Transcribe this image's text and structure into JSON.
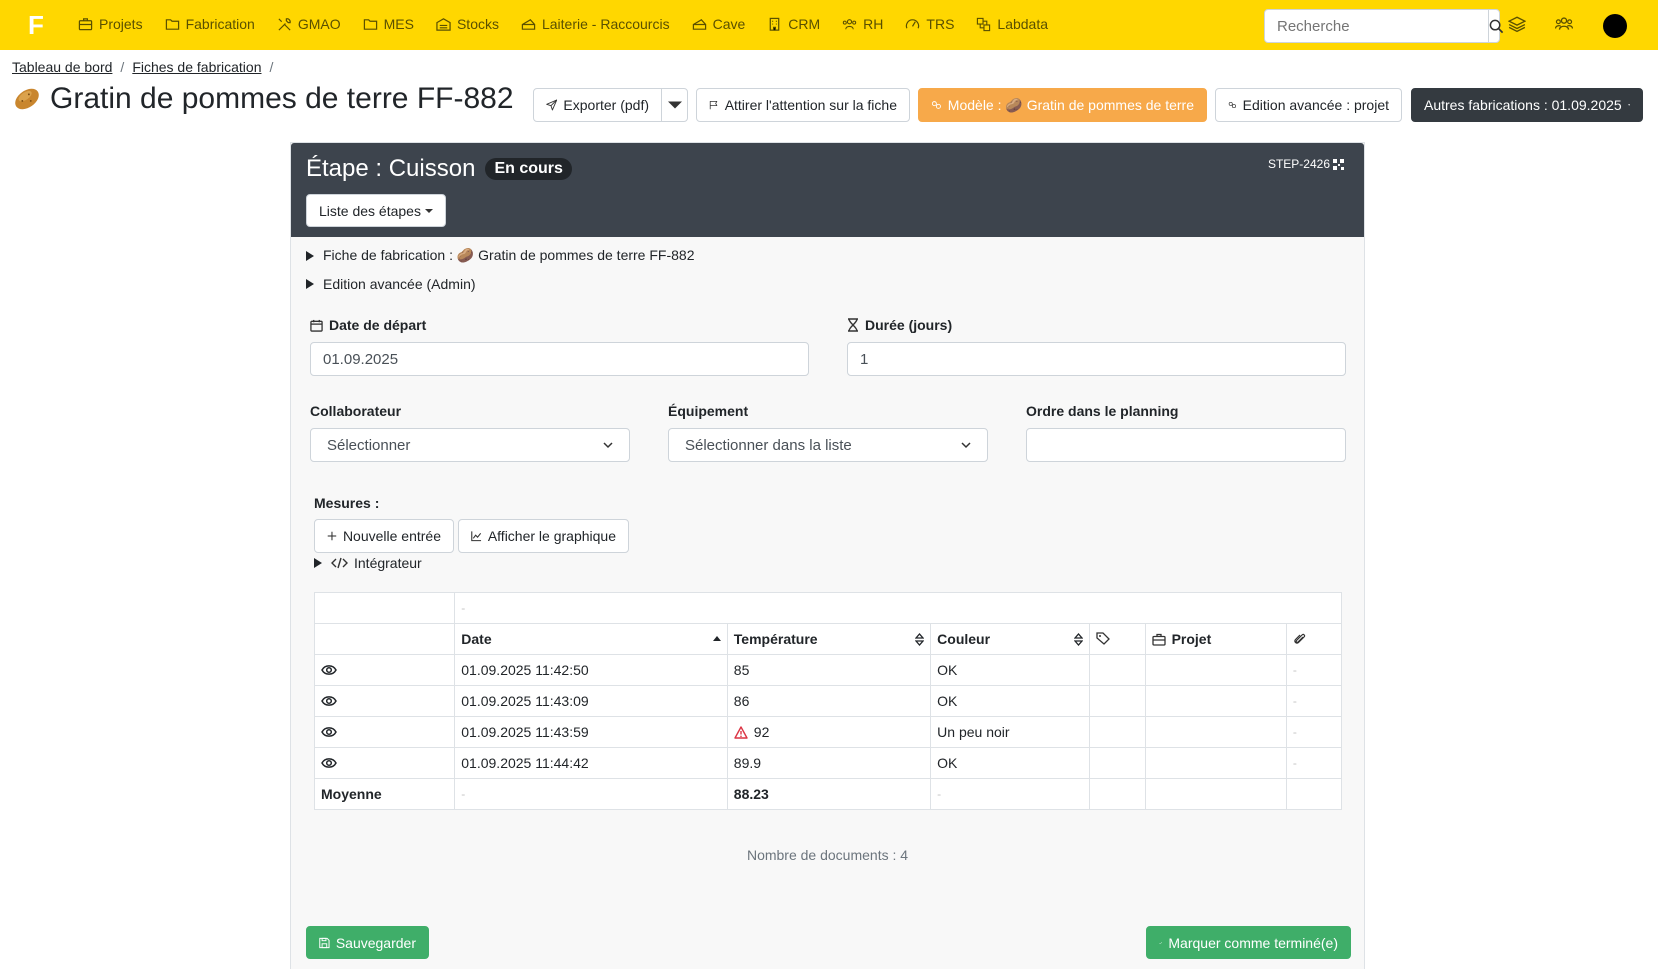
{
  "navbar": {
    "logo": "F",
    "items": [
      {
        "label": "Projets",
        "icon": "briefcase-icon"
      },
      {
        "label": "Fabrication",
        "icon": "folder-icon"
      },
      {
        "label": "GMAO",
        "icon": "tools-icon"
      },
      {
        "label": "MES",
        "icon": "folder-icon"
      },
      {
        "label": "Stocks",
        "icon": "warehouse-icon"
      },
      {
        "label": "Laiterie - Raccourcis",
        "icon": "cheese-icon"
      },
      {
        "label": "Cave",
        "icon": "cheese-icon"
      },
      {
        "label": "CRM",
        "icon": "building-icon"
      },
      {
        "label": "RH",
        "icon": "users-icon"
      },
      {
        "label": "TRS",
        "icon": "gauge-icon"
      },
      {
        "label": "Labdata",
        "icon": "lab-icon"
      }
    ],
    "search_placeholder": "Recherche"
  },
  "breadcrumb": [
    "Tableau de bord",
    "Fiches de fabrication"
  ],
  "page_title": "Gratin de pommes de terre FF-882",
  "toolbar": {
    "export_label": "Exporter (pdf)",
    "attention_label": "Attirer l'attention sur la fiche",
    "model_label": "Modèle : 🥔 Gratin de pommes de terre",
    "advanced_label": "Edition avancée : projet",
    "other_label": "Autres fabrications : 01.09.2025"
  },
  "step": {
    "title": "Étape : Cuisson",
    "status": "En cours",
    "id": "STEP-2426",
    "list_label": "Liste des étapes",
    "detail_sheet": "Fiche de fabrication : 🥔 Gratin de pommes de terre FF-882",
    "detail_admin": "Edition avancée (Admin)"
  },
  "form": {
    "start_label": "Date de départ",
    "start_value": "01.09.2025",
    "duration_label": "Durée (jours)",
    "duration_value": "1",
    "collab_label": "Collaborateur",
    "collab_value": "Sélectionner",
    "equip_label": "Équipement",
    "equip_value": "Sélectionner dans la liste",
    "order_label": "Ordre dans le planning",
    "order_value": ""
  },
  "measures": {
    "title": "Mesures :",
    "new_entry": "Nouvelle entrée",
    "show_chart": "Afficher le graphique",
    "integrator": "Intégrateur",
    "top_row_dash": "-",
    "columns": [
      "Date",
      "Température",
      "Couleur",
      "Projet"
    ],
    "rows": [
      {
        "date": "01.09.2025 11:42:50",
        "temp": "85",
        "color": "OK",
        "warn": false
      },
      {
        "date": "01.09.2025 11:43:09",
        "temp": "86",
        "color": "OK",
        "warn": false
      },
      {
        "date": "01.09.2025 11:43:59",
        "temp": "92",
        "color": "Un peu noir",
        "warn": true
      },
      {
        "date": "01.09.2025 11:44:42",
        "temp": "89.9",
        "color": "OK",
        "warn": false
      }
    ],
    "avg_label": "Moyenne",
    "avg_date": "-",
    "avg_temp": "88.23",
    "avg_color": "-",
    "docs_count": "Nombre de documents : 4"
  },
  "footer": {
    "save_label": "Sauvegarder",
    "done_label": "Marquer comme terminé(e)"
  },
  "colors": {
    "navbar": "#ffd700",
    "panel_header": "#3d444d",
    "model_button": "#f7a94a",
    "success": "#3fae69"
  }
}
